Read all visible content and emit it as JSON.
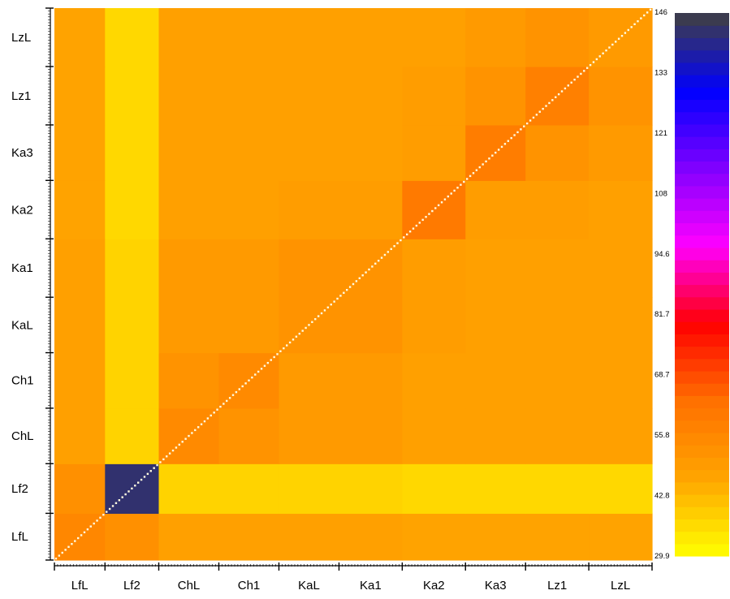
{
  "chart_data": {
    "type": "heatmap",
    "title": "",
    "xlabel": "",
    "ylabel": "",
    "segments": [
      {
        "label": "LfL",
        "n": 16
      },
      {
        "label": "Lf2",
        "n": 17
      },
      {
        "label": "ChL",
        "n": 19
      },
      {
        "label": "Ch1",
        "n": 19
      },
      {
        "label": "KaL",
        "n": 19
      },
      {
        "label": "Ka1",
        "n": 20
      },
      {
        "label": "Ka2",
        "n": 20
      },
      {
        "label": "Ka3",
        "n": 19
      },
      {
        "label": "Lz1",
        "n": 20
      },
      {
        "label": "LzL",
        "n": 20
      }
    ],
    "x_tick_labels": [
      "LfL",
      "Lf2",
      "ChL",
      "Ch1",
      "KaL",
      "Ka1",
      "Ka2",
      "Ka3",
      "Lz1",
      "LzL"
    ],
    "y_tick_labels": [
      "LfL",
      "Lf2",
      "ChL",
      "Ch1",
      "KaL",
      "Ka1",
      "Ka2",
      "Ka3",
      "Lz1",
      "LzL"
    ],
    "block_values": [
      [
        56,
        53,
        48,
        48,
        48,
        48,
        47,
        47,
        47,
        47
      ],
      [
        53,
        142,
        38,
        38,
        38,
        38,
        37,
        37,
        37,
        37
      ],
      [
        48,
        38,
        55,
        52,
        50,
        50,
        48,
        48,
        48,
        48
      ],
      [
        48,
        38,
        52,
        55,
        50,
        50,
        48,
        48,
        48,
        48
      ],
      [
        48,
        38,
        50,
        50,
        52,
        52,
        49,
        48,
        48,
        48
      ],
      [
        48,
        38,
        50,
        50,
        52,
        52,
        49,
        48,
        48,
        48
      ],
      [
        47,
        37,
        48,
        48,
        49,
        49,
        60,
        49,
        49,
        48
      ],
      [
        47,
        37,
        48,
        48,
        48,
        48,
        49,
        59,
        52,
        50
      ],
      [
        47,
        37,
        48,
        48,
        48,
        48,
        49,
        52,
        58,
        52
      ],
      [
        47,
        37,
        48,
        48,
        48,
        48,
        48,
        50,
        52,
        50
      ]
    ],
    "diagonal_value": 30,
    "colorbar": {
      "min": 29.9,
      "max": 146,
      "tick_labels": [
        "146",
        "133",
        "121",
        "108",
        "94.6",
        "81.7",
        "68.7",
        "55.8",
        "42.8",
        "29.9"
      ],
      "colors": [
        "#ffff00",
        "#ffa500",
        "#ff7000",
        "#ff0000",
        "#ff00ff",
        "#8000ff",
        "#0000ff",
        "#404040"
      ]
    }
  }
}
